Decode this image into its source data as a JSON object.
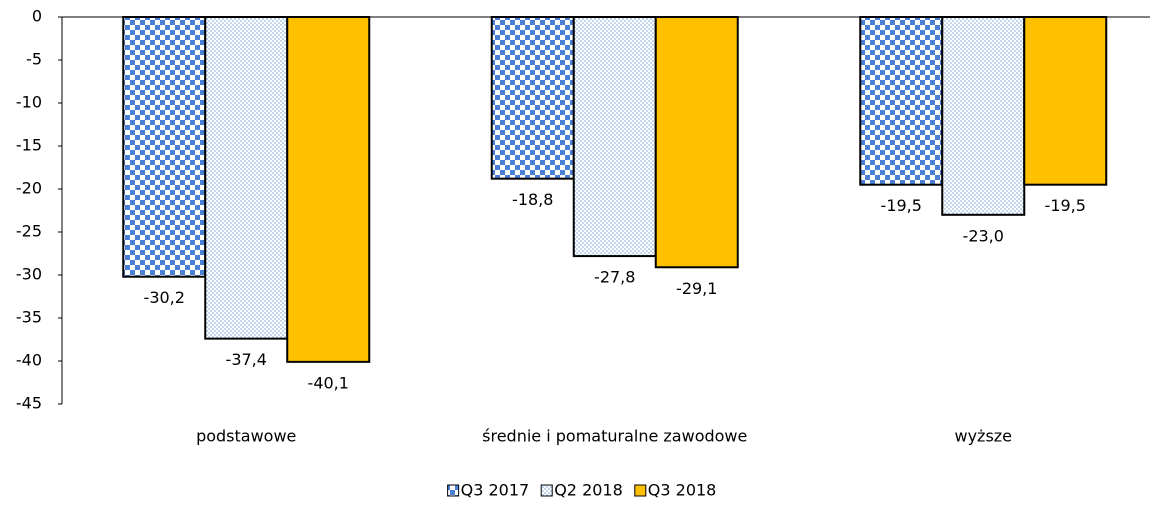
{
  "chart_data": {
    "type": "bar",
    "categories": [
      "podstawowe",
      "średnie i pomaturalne zawodowe",
      "wyższe"
    ],
    "series": [
      {
        "name": "Q3 2017",
        "color": "#4a7fd6",
        "pattern": "checker",
        "values": [
          -30.2,
          -18.8,
          -19.5
        ],
        "value_labels": [
          "-30,2",
          "-18,8",
          "-19,5"
        ]
      },
      {
        "name": "Q2 2018",
        "color": "#7aa6e0",
        "pattern": "dots",
        "values": [
          -37.4,
          -27.8,
          -23.0
        ],
        "value_labels": [
          "-37,4",
          "-27,8",
          "-23,0"
        ]
      },
      {
        "name": "Q3 2018",
        "color": "#ffc000",
        "pattern": "solid",
        "values": [
          -40.1,
          -29.1,
          -19.5
        ],
        "value_labels": [
          "-40,1",
          "-29,1",
          "-19,5"
        ]
      }
    ],
    "ylim": [
      -45,
      0
    ],
    "yticks": [
      0,
      -5,
      -10,
      -15,
      -20,
      -25,
      -30,
      -35,
      -40,
      -45
    ],
    "legend": "bottom"
  }
}
